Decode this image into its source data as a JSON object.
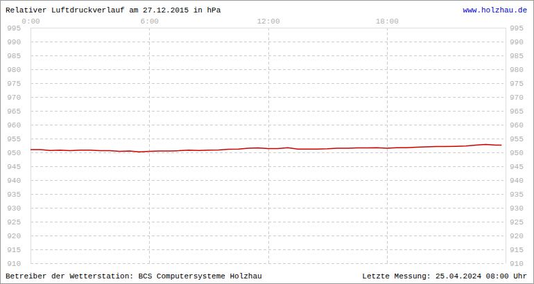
{
  "chart_data": {
    "type": "line",
    "title": "Relativer Luftdruckverlauf am 27.12.2015 in hPa",
    "annotations": [
      "www.holzhau.de",
      "Betreiber der Wetterstation: BCS Computersysteme Holzhau",
      "Letzte Messung: 25.04.2024 08:00 Uhr"
    ],
    "x": [
      0,
      0.5,
      1,
      1.5,
      2,
      2.5,
      3,
      3.5,
      4,
      4.5,
      5,
      5.5,
      6,
      6.5,
      7,
      7.5,
      8,
      8.5,
      9,
      9.5,
      10,
      10.5,
      11,
      11.5,
      12,
      12.5,
      13,
      13.5,
      14,
      14.5,
      15,
      15.5,
      16,
      16.5,
      17,
      17.5,
      18,
      18.5,
      19,
      19.5,
      20,
      20.5,
      21,
      21.5,
      22,
      22.5,
      23,
      23.5,
      23.8
    ],
    "values": [
      951.0,
      951.0,
      950.7,
      950.8,
      950.6,
      950.8,
      950.8,
      950.6,
      950.6,
      950.4,
      950.5,
      950.2,
      950.4,
      950.5,
      950.5,
      950.6,
      950.8,
      950.7,
      950.8,
      950.9,
      951.1,
      951.2,
      951.5,
      951.6,
      951.4,
      951.4,
      951.7,
      951.2,
      951.2,
      951.2,
      951.3,
      951.5,
      951.5,
      951.6,
      951.6,
      951.7,
      951.5,
      951.7,
      951.7,
      951.9,
      952.0,
      952.1,
      952.1,
      952.2,
      952.3,
      952.6,
      952.9,
      952.6,
      952.6
    ],
    "color": "#cc0000",
    "xlim": [
      0,
      24
    ],
    "xticks": [
      {
        "value": 0,
        "label": "0:00"
      },
      {
        "value": 6,
        "label": "6:00"
      },
      {
        "value": 12,
        "label": "12:00"
      },
      {
        "value": 18,
        "label": "18:00"
      }
    ],
    "ylim": [
      910,
      995
    ],
    "yticks": [
      910,
      915,
      920,
      925,
      930,
      935,
      940,
      945,
      950,
      955,
      960,
      965,
      970,
      975,
      980,
      985,
      990,
      995
    ],
    "grid": true
  }
}
